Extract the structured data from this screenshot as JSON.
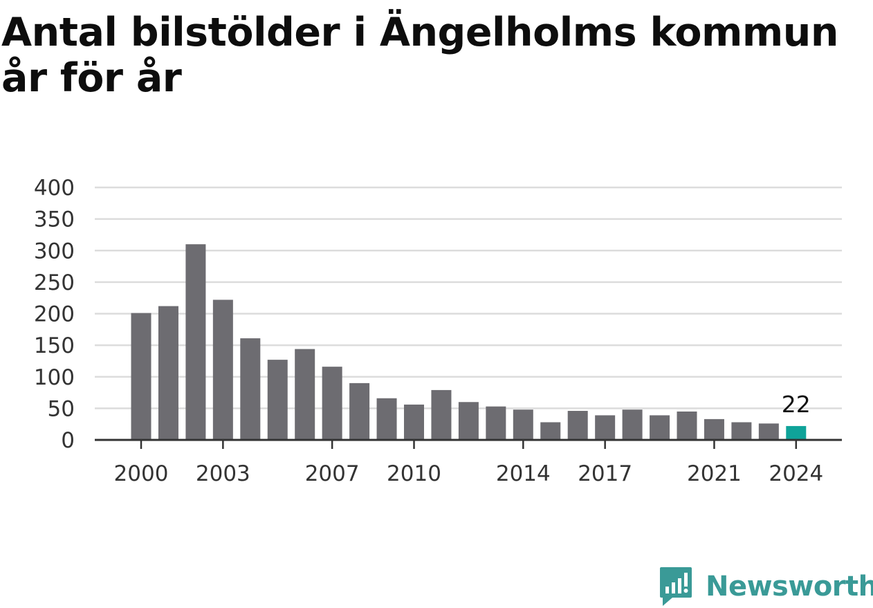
{
  "title": "Antal bilstölder i Ängelholms kommun år för år",
  "brand": {
    "name": "Newsworthy",
    "icon": "newsworthy-logo-icon"
  },
  "colors": {
    "bar": "#6d6c71",
    "highlight": "#0fa399",
    "grid": "#dcdcdc",
    "axis": "#333333"
  },
  "chart_data": {
    "type": "bar",
    "x": [
      2000,
      2001,
      2002,
      2003,
      2004,
      2005,
      2006,
      2007,
      2008,
      2009,
      2010,
      2011,
      2012,
      2013,
      2014,
      2015,
      2016,
      2017,
      2018,
      2019,
      2020,
      2021,
      2022,
      2023,
      2024
    ],
    "values": [
      201,
      212,
      310,
      222,
      161,
      127,
      144,
      116,
      90,
      66,
      56,
      79,
      60,
      53,
      48,
      28,
      46,
      39,
      48,
      39,
      45,
      33,
      28,
      26,
      22
    ],
    "xticks": [
      "2000",
      "2003",
      "2007",
      "2010",
      "2014",
      "2017",
      "2021",
      "2024"
    ],
    "yticks": [
      0,
      50,
      100,
      150,
      200,
      250,
      300,
      350,
      400
    ],
    "ylim": [
      0,
      400
    ],
    "highlight": {
      "x": 2024,
      "label": "22"
    },
    "grid": true,
    "xlabel": "",
    "ylabel": ""
  }
}
